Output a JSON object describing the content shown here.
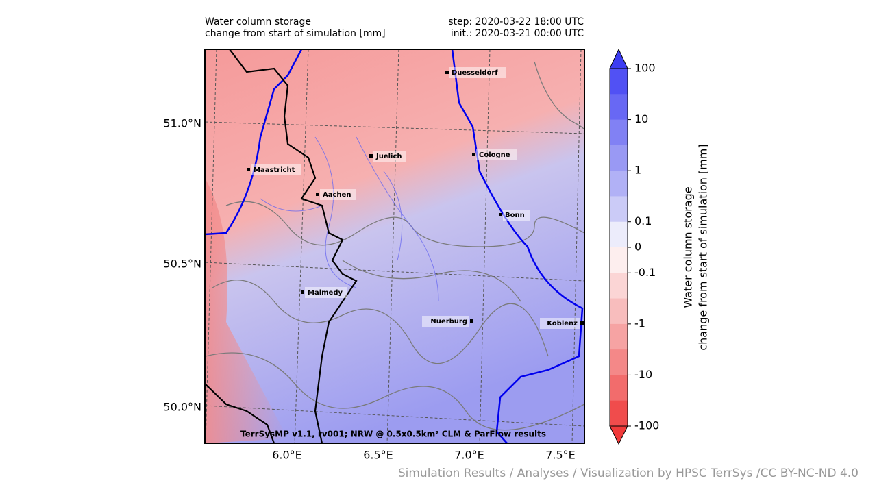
{
  "header": {
    "title_line1": "Water column storage",
    "title_line2": "change from start of simulation [mm]",
    "step": "step: 2020-03-22 18:00 UTC",
    "init": "init.: 2020-03-21 00:00 UTC"
  },
  "map": {
    "lat_labels": [
      "51.0°N",
      "50.5°N",
      "50.0°N"
    ],
    "lon_labels": [
      "6.0°E",
      "6.5°E",
      "7.0°E",
      "7.5°E"
    ],
    "cities": [
      "Duesseldorf",
      "Cologne",
      "Juelich",
      "Maastricht",
      "Aachen",
      "Bonn",
      "Malmedy",
      "Nuerburg",
      "Koblenz"
    ],
    "footer": "TerrSysMP v1.1, rv001; NRW @ 0.5x0.5km² CLM & ParFlow results"
  },
  "colorbar": {
    "label_line1": "Water column storage",
    "label_line2": "change from start of simulation [mm]",
    "ticks": [
      100,
      10,
      1,
      0.1,
      0,
      -0.1,
      -1,
      -10,
      -100
    ]
  },
  "credit": "Simulation Results / Analyses / Visualization by HPSC TerrSys /CC BY-NC-ND 4.0"
}
